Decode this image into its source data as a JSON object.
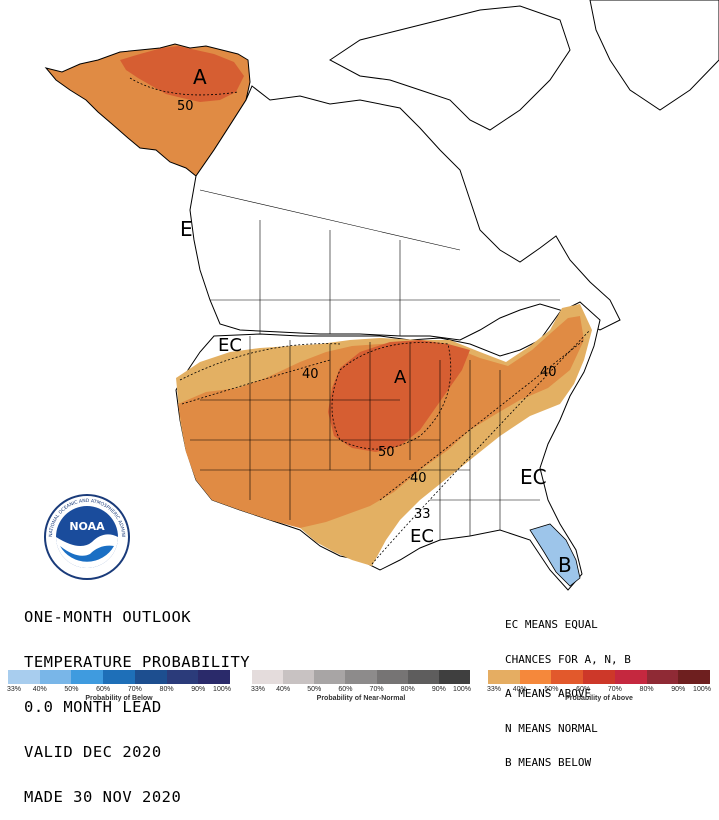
{
  "map": {
    "region_labels": [
      {
        "id": "alaska-a",
        "text": "A"
      },
      {
        "id": "alaska-50",
        "text": "50"
      },
      {
        "id": "west-ec",
        "text": "E"
      },
      {
        "id": "northwest-ec",
        "text": "EC"
      },
      {
        "id": "plains-40",
        "text": "40"
      },
      {
        "id": "midwest-a",
        "text": "A"
      },
      {
        "id": "northeast-40",
        "text": "40"
      },
      {
        "id": "plains-50",
        "text": "50"
      },
      {
        "id": "south-40",
        "text": "40"
      },
      {
        "id": "south-33",
        "text": "33"
      },
      {
        "id": "southeast-ec",
        "text": "EC"
      },
      {
        "id": "gulf-ec",
        "text": "EC"
      },
      {
        "id": "florida-b",
        "text": "B"
      }
    ],
    "colors": {
      "above_40": "#e3b063",
      "above_50": "#e08b44",
      "above_60": "#d65e32",
      "below_40": "#9dc5ea",
      "border": "#000000"
    }
  },
  "title_lines": [
    "ONE-MONTH OUTLOOK",
    "TEMPERATURE PROBABILITY",
    "0.0 MONTH LEAD",
    "VALID DEC 2020",
    "MADE 30 NOV 2020"
  ],
  "ec_note_lines": [
    "EC MEANS EQUAL",
    "CHANCES FOR A, N, B",
    "A MEANS ABOVE",
    "N MEANS NORMAL",
    "B MEANS BELOW"
  ],
  "legends": [
    {
      "caption": "Probability of Below",
      "ticks": [
        "33%",
        "40%",
        "50%",
        "60%",
        "70%",
        "80%",
        "90%",
        "100%"
      ],
      "colors": [
        "#a8cdee",
        "#79b6e8",
        "#3f9bdf",
        "#1e6fb8",
        "#1d4e8f",
        "#2b3b7a",
        "#2a2a6a"
      ]
    },
    {
      "caption": "Probability of Near-Normal",
      "ticks": [
        "33%",
        "40%",
        "50%",
        "60%",
        "70%",
        "80%",
        "90%",
        "100%"
      ],
      "colors": [
        "#e4dcdc",
        "#c8c2c2",
        "#a8a5a5",
        "#8d8b8b",
        "#767474",
        "#5e5d5d",
        "#3f3f3f"
      ]
    },
    {
      "caption": "Probability of Above",
      "ticks": [
        "33%",
        "40%",
        "50%",
        "60%",
        "70%",
        "80%",
        "90%",
        "100%"
      ],
      "colors": [
        "#e5ad62",
        "#f5883b",
        "#e2592c",
        "#cd3829",
        "#c5283f",
        "#8f2a35",
        "#6e1f1f"
      ]
    }
  ],
  "logo": {
    "text": "NOAA",
    "ring_text": "NATIONAL OCEANIC AND ATMOSPHERIC ADMINISTRATION"
  }
}
